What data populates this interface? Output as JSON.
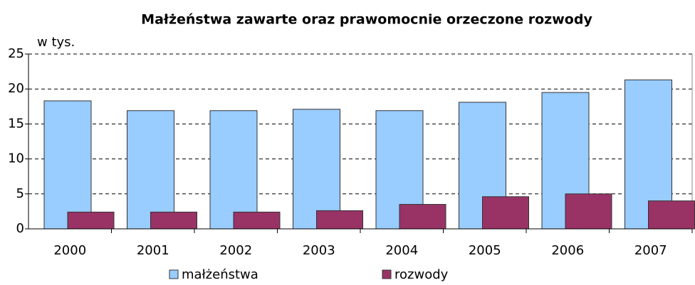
{
  "chart_data": {
    "type": "bar",
    "title": "Małżeństwa zawarte oraz prawomocnie orzeczone rozwody",
    "y_label": "w tys.",
    "categories": [
      "2000",
      "2001",
      "2002",
      "2003",
      "2004",
      "2005",
      "2006",
      "2007"
    ],
    "series": [
      {
        "name": "małżeństwa",
        "color": "#99ccff",
        "values": [
          18.3,
          16.9,
          16.9,
          17.1,
          16.9,
          18.1,
          19.5,
          21.3
        ]
      },
      {
        "name": "rozwody",
        "color": "#993366",
        "values": [
          2.4,
          2.4,
          2.4,
          2.6,
          3.5,
          4.6,
          5.0,
          4.0
        ]
      }
    ],
    "ylim": [
      0,
      25
    ],
    "yticks": [
      0,
      5,
      10,
      15,
      20,
      25
    ],
    "grid": true,
    "legend": "bottom"
  }
}
